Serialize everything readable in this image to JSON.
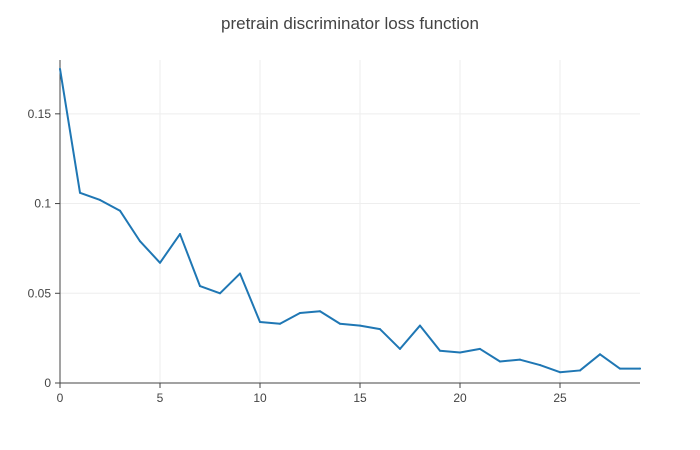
{
  "chart_data": {
    "type": "line",
    "title": "pretrain discriminator loss function",
    "xlabel": "",
    "ylabel": "",
    "xlim": [
      0,
      29
    ],
    "ylim": [
      0,
      0.18
    ],
    "xticks": [
      0,
      5,
      10,
      15,
      20,
      25
    ],
    "xtick_labels": [
      "0",
      "5",
      "10",
      "15",
      "20",
      "25"
    ],
    "yticks": [
      0,
      0.05,
      0.1,
      0.15
    ],
    "ytick_labels": [
      "0",
      "0.05",
      "0.1",
      "0.15"
    ],
    "grid": true,
    "line_color": "#1f77b4",
    "series": [
      {
        "x": [
          0,
          1,
          2,
          3,
          4,
          5,
          6,
          7,
          8,
          9,
          10,
          11,
          12,
          13,
          14,
          15,
          16,
          17,
          18,
          19,
          20,
          21,
          22,
          23,
          24,
          25,
          26,
          27,
          28,
          29
        ],
        "values": [
          0.175,
          0.106,
          0.102,
          0.096,
          0.079,
          0.067,
          0.083,
          0.054,
          0.05,
          0.061,
          0.034,
          0.033,
          0.039,
          0.04,
          0.033,
          0.032,
          0.03,
          0.019,
          0.032,
          0.018,
          0.017,
          0.019,
          0.012,
          0.013,
          0.01,
          0.006,
          0.007,
          0.016,
          0.008,
          0.008
        ]
      }
    ]
  }
}
